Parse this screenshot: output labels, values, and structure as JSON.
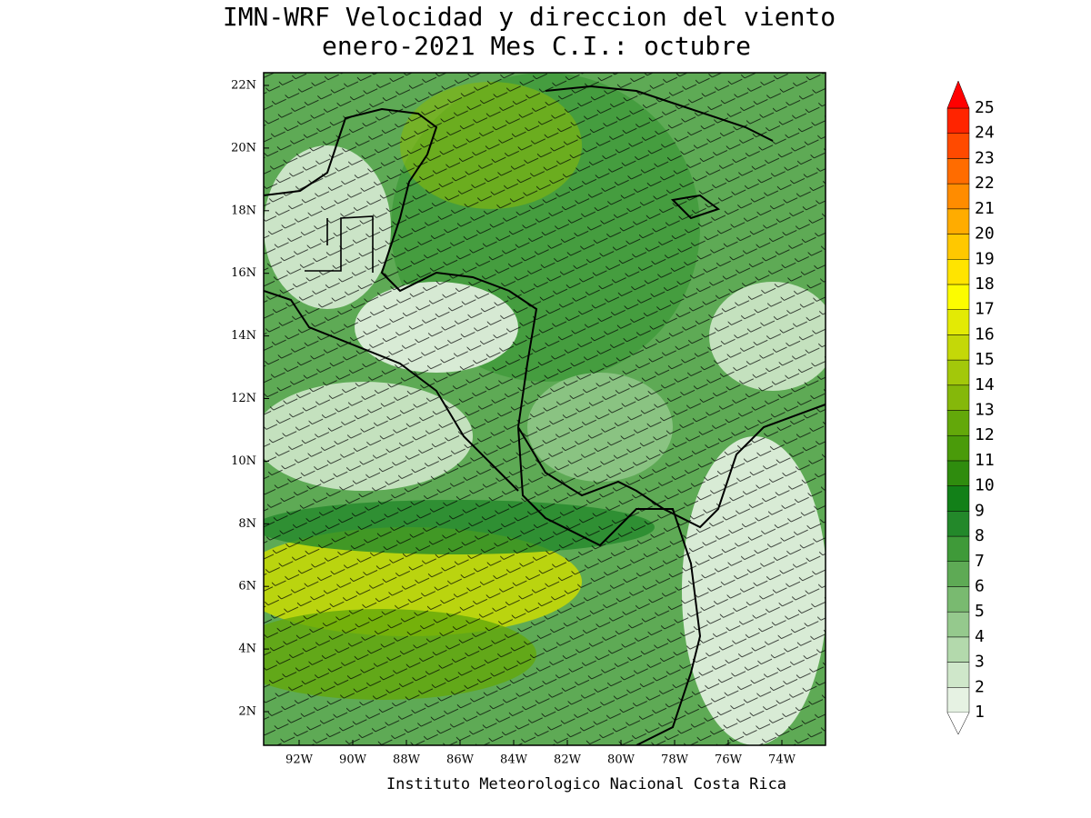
{
  "title": [
    "IMN-WRF Velocidad y direccion del viento",
    "enero-2021 Mes C.I.: octubre"
  ],
  "lat_labels": [
    "22N",
    "20N",
    "18N",
    "16N",
    "14N",
    "12N",
    "10N",
    "8N",
    "6N",
    "4N",
    "2N"
  ],
  "lon_labels": [
    "92W",
    "90W",
    "88W",
    "86W",
    "84W",
    "82W",
    "80W",
    "78W",
    "76W",
    "74W"
  ],
  "colorbar": {
    "labels": [
      "1",
      "2",
      "3",
      "4",
      "5",
      "6",
      "7",
      "8",
      "9",
      "10",
      "11",
      "12",
      "13",
      "14",
      "15",
      "16",
      "17",
      "18",
      "19",
      "20",
      "21",
      "22",
      "23",
      "24",
      "25"
    ],
    "colors": [
      "#e6f2e3",
      "#cfe7ca",
      "#b3d9ac",
      "#95c98d",
      "#79ba70",
      "#5eaa55",
      "#3f9a39",
      "#23882a",
      "#128018",
      "#2f8c0e",
      "#4a9b0a",
      "#63a80a",
      "#85b80a",
      "#a3c80a",
      "#c4d808",
      "#e3ea05",
      "#fcfc00",
      "#ffe400",
      "#ffc800",
      "#ffac00",
      "#ff8c00",
      "#ff6c00",
      "#ff4a00",
      "#ff2400"
    ],
    "over_color": "#ff0000"
  },
  "footer": "Instituto Meteorologico Nacional Costa Rica"
}
